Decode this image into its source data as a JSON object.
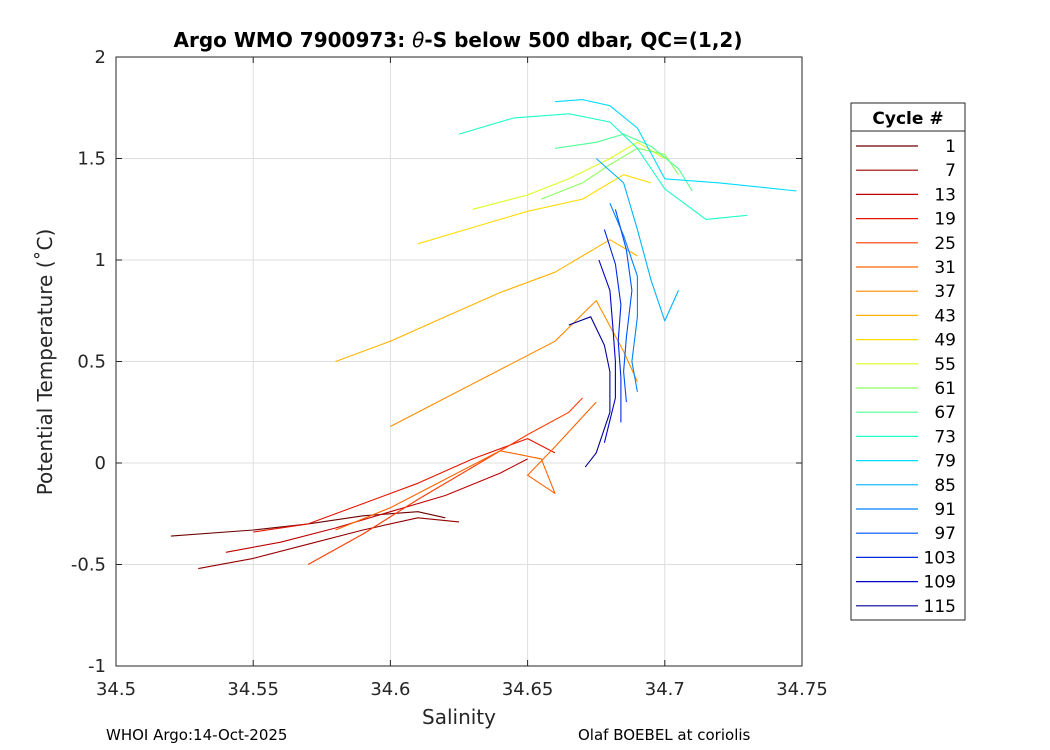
{
  "chart_data": {
    "type": "line",
    "title_prefix": "Argo WMO 7900973: ",
    "title_symbol": "θ",
    "title_suffix": "-S below 500 dbar,  QC=(1,2)",
    "xlabel": "Salinity",
    "ylabel": "Potential Temperature (˚C)",
    "xlim": [
      34.5,
      34.75
    ],
    "ylim": [
      -1,
      2
    ],
    "xticks": [
      "34.5",
      "34.55",
      "34.6",
      "34.65",
      "34.7",
      "34.75"
    ],
    "yticks": [
      "2",
      "1.5",
      "1",
      "0.5",
      "0",
      "-0.5",
      "-1"
    ],
    "grid": true,
    "legend": {
      "title": "Cycle #",
      "placement": "right-outside",
      "entries": [
        "1",
        "7",
        "13",
        "19",
        "25",
        "31",
        "37",
        "43",
        "49",
        "55",
        "61",
        "67",
        "73",
        "79",
        "85",
        "91",
        "97",
        "103",
        "109",
        "115"
      ],
      "colors": [
        "#6e0000",
        "#960000",
        "#be0000",
        "#e61400",
        "#ff3c00",
        "#ff6400",
        "#ff8c00",
        "#ffb400",
        "#ffdc00",
        "#dcff1e",
        "#8cff5a",
        "#50ff96",
        "#1effc8",
        "#00dcff",
        "#00b4ff",
        "#0082ff",
        "#0050ff",
        "#0028e6",
        "#0000c8",
        "#000096"
      ]
    },
    "series": [
      {
        "name": "1",
        "points": [
          [
            34.52,
            -0.36
          ],
          [
            34.55,
            -0.33
          ],
          [
            34.57,
            -0.3
          ],
          [
            34.59,
            -0.26
          ],
          [
            34.61,
            -0.24
          ],
          [
            34.62,
            -0.27
          ]
        ]
      },
      {
        "name": "7",
        "points": [
          [
            34.53,
            -0.52
          ],
          [
            34.55,
            -0.47
          ],
          [
            34.57,
            -0.4
          ],
          [
            34.59,
            -0.33
          ],
          [
            34.61,
            -0.27
          ],
          [
            34.625,
            -0.29
          ]
        ]
      },
      {
        "name": "13",
        "points": [
          [
            34.54,
            -0.44
          ],
          [
            34.56,
            -0.39
          ],
          [
            34.58,
            -0.32
          ],
          [
            34.6,
            -0.24
          ],
          [
            34.62,
            -0.16
          ],
          [
            34.64,
            -0.05
          ],
          [
            34.65,
            0.02
          ]
        ]
      },
      {
        "name": "19",
        "points": [
          [
            34.55,
            -0.34
          ],
          [
            34.57,
            -0.3
          ],
          [
            34.59,
            -0.2
          ],
          [
            34.61,
            -0.1
          ],
          [
            34.63,
            0.02
          ],
          [
            34.65,
            0.12
          ],
          [
            34.66,
            0.05
          ]
        ]
      },
      {
        "name": "25",
        "points": [
          [
            34.57,
            -0.5
          ],
          [
            34.59,
            -0.35
          ],
          [
            34.61,
            -0.18
          ],
          [
            34.63,
            -0.02
          ],
          [
            34.65,
            0.14
          ],
          [
            34.665,
            0.25
          ],
          [
            34.67,
            0.32
          ]
        ]
      },
      {
        "name": "31",
        "points": [
          [
            34.58,
            -0.33
          ],
          [
            34.6,
            -0.22
          ],
          [
            34.62,
            -0.08
          ],
          [
            34.64,
            0.06
          ],
          [
            34.655,
            0.02
          ],
          [
            34.66,
            -0.15
          ],
          [
            34.65,
            -0.06
          ],
          [
            34.66,
            0.08
          ],
          [
            34.675,
            0.3
          ]
        ]
      },
      {
        "name": "37",
        "points": [
          [
            34.6,
            0.18
          ],
          [
            34.62,
            0.32
          ],
          [
            34.64,
            0.46
          ],
          [
            34.66,
            0.6
          ],
          [
            34.675,
            0.8
          ],
          [
            34.685,
            0.55
          ],
          [
            34.69,
            0.4
          ]
        ]
      },
      {
        "name": "43",
        "points": [
          [
            34.58,
            0.5
          ],
          [
            34.6,
            0.6
          ],
          [
            34.62,
            0.72
          ],
          [
            34.64,
            0.84
          ],
          [
            34.66,
            0.94
          ],
          [
            34.68,
            1.1
          ],
          [
            34.69,
            1.02
          ]
        ]
      },
      {
        "name": "49",
        "points": [
          [
            34.61,
            1.08
          ],
          [
            34.63,
            1.16
          ],
          [
            34.65,
            1.24
          ],
          [
            34.67,
            1.3
          ],
          [
            34.685,
            1.42
          ],
          [
            34.695,
            1.38
          ]
        ]
      },
      {
        "name": "55",
        "points": [
          [
            34.63,
            1.25
          ],
          [
            34.65,
            1.32
          ],
          [
            34.665,
            1.4
          ],
          [
            34.68,
            1.5
          ],
          [
            34.69,
            1.58
          ],
          [
            34.7,
            1.5
          ]
        ]
      },
      {
        "name": "61",
        "points": [
          [
            34.655,
            1.3
          ],
          [
            34.67,
            1.38
          ],
          [
            34.68,
            1.47
          ],
          [
            34.69,
            1.55
          ],
          [
            34.7,
            1.52
          ],
          [
            34.705,
            1.42
          ]
        ]
      },
      {
        "name": "67",
        "points": [
          [
            34.66,
            1.55
          ],
          [
            34.675,
            1.58
          ],
          [
            34.685,
            1.62
          ],
          [
            34.695,
            1.56
          ],
          [
            34.705,
            1.45
          ],
          [
            34.71,
            1.34
          ]
        ]
      },
      {
        "name": "73",
        "points": [
          [
            34.625,
            1.62
          ],
          [
            34.645,
            1.7
          ],
          [
            34.665,
            1.72
          ],
          [
            34.68,
            1.68
          ],
          [
            34.69,
            1.55
          ],
          [
            34.7,
            1.35
          ],
          [
            34.715,
            1.2
          ],
          [
            34.73,
            1.22
          ]
        ]
      },
      {
        "name": "79",
        "points": [
          [
            34.66,
            1.78
          ],
          [
            34.67,
            1.79
          ],
          [
            34.68,
            1.76
          ],
          [
            34.69,
            1.65
          ],
          [
            34.7,
            1.4
          ],
          [
            34.72,
            1.38
          ],
          [
            34.748,
            1.34
          ]
        ]
      },
      {
        "name": "85",
        "points": [
          [
            34.675,
            1.5
          ],
          [
            34.685,
            1.38
          ],
          [
            34.69,
            1.15
          ],
          [
            34.695,
            0.9
          ],
          [
            34.7,
            0.7
          ],
          [
            34.705,
            0.85
          ]
        ]
      },
      {
        "name": "91",
        "points": [
          [
            34.68,
            1.28
          ],
          [
            34.685,
            1.12
          ],
          [
            34.69,
            0.92
          ],
          [
            34.69,
            0.72
          ],
          [
            34.688,
            0.5
          ],
          [
            34.69,
            0.35
          ]
        ]
      },
      {
        "name": "97",
        "points": [
          [
            34.682,
            1.25
          ],
          [
            34.686,
            1.05
          ],
          [
            34.688,
            0.85
          ],
          [
            34.686,
            0.62
          ],
          [
            34.685,
            0.45
          ],
          [
            34.686,
            0.3
          ]
        ]
      },
      {
        "name": "103",
        "points": [
          [
            34.678,
            1.15
          ],
          [
            34.682,
            0.98
          ],
          [
            34.684,
            0.78
          ],
          [
            34.683,
            0.6
          ],
          [
            34.684,
            0.42
          ],
          [
            34.684,
            0.2
          ]
        ]
      },
      {
        "name": "109",
        "points": [
          [
            34.676,
            1.0
          ],
          [
            34.68,
            0.85
          ],
          [
            34.681,
            0.68
          ],
          [
            34.682,
            0.5
          ],
          [
            34.682,
            0.32
          ],
          [
            34.678,
            0.1
          ]
        ]
      },
      {
        "name": "115",
        "points": [
          [
            34.665,
            0.68
          ],
          [
            34.673,
            0.72
          ],
          [
            34.678,
            0.58
          ],
          [
            34.68,
            0.45
          ],
          [
            34.68,
            0.25
          ],
          [
            34.675,
            0.05
          ],
          [
            34.671,
            -0.02
          ]
        ]
      }
    ]
  },
  "footer": {
    "left": "WHOI Argo:14-Oct-2025",
    "right": "Olaf BOEBEL at coriolis"
  }
}
